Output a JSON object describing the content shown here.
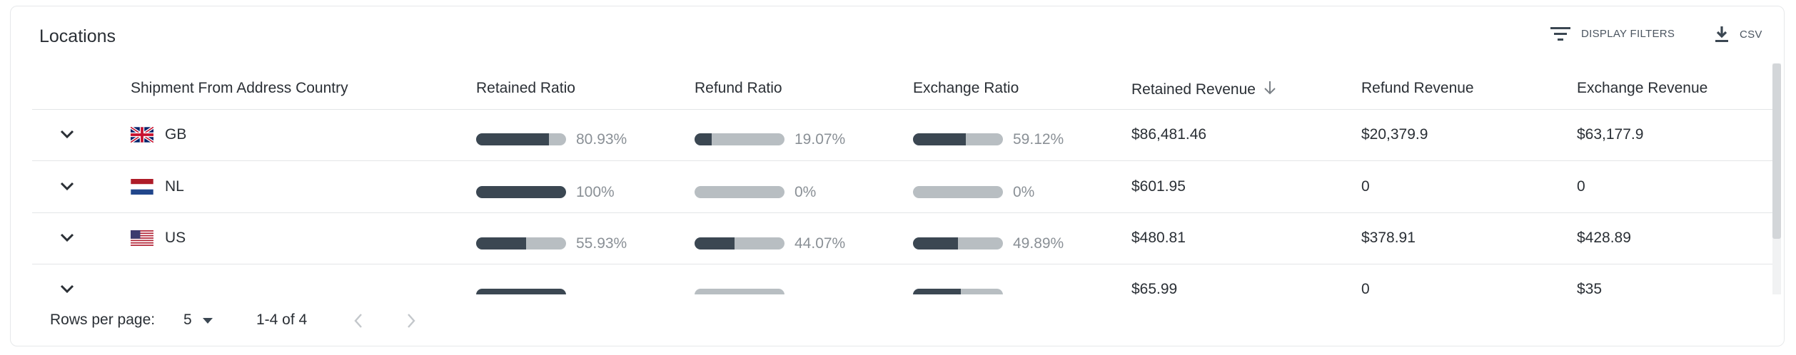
{
  "panel": {
    "title": "Locations",
    "display_filters_label": "DISPLAY FILTERS",
    "csv_label": "CSV",
    "filter_icon": "filter-list-icon",
    "download_icon": "download-icon"
  },
  "table": {
    "columns": {
      "country": "Shipment From Address Country",
      "retained_ratio": "Retained Ratio",
      "refund_ratio": "Refund Ratio",
      "exchange_ratio": "Exchange Ratio",
      "retained_revenue": "Retained Revenue",
      "refund_revenue": "Refund Revenue",
      "exchange_revenue": "Exchange Revenue"
    },
    "sorted_column": "retained_revenue",
    "sort_direction": "descending",
    "rows": [
      {
        "country": "GB",
        "flag": "uk-flag-icon",
        "retained_ratio": {
          "value": 0.8093,
          "label": "80.93%"
        },
        "refund_ratio": {
          "value": 0.1907,
          "label": "19.07%"
        },
        "exchange_ratio": {
          "value": 0.5912,
          "label": "59.12%"
        },
        "retained_revenue": "$86,481.46",
        "refund_revenue": "$20,379.9",
        "exchange_revenue": "$63,177.9"
      },
      {
        "country": "NL",
        "flag": "nl-flag-icon",
        "retained_ratio": {
          "value": 1.0,
          "label": "100%"
        },
        "refund_ratio": {
          "value": 0.0,
          "label": "0%"
        },
        "exchange_ratio": {
          "value": 0.0,
          "label": "0%"
        },
        "retained_revenue": "$601.95",
        "refund_revenue": "0",
        "exchange_revenue": "0"
      },
      {
        "country": "US",
        "flag": "us-flag-icon",
        "retained_ratio": {
          "value": 0.5593,
          "label": "55.93%"
        },
        "refund_ratio": {
          "value": 0.4407,
          "label": "44.07%"
        },
        "exchange_ratio": {
          "value": 0.4989,
          "label": "49.89%"
        },
        "retained_revenue": "$480.81",
        "refund_revenue": "$378.91",
        "exchange_revenue": "$428.89"
      },
      {
        "country": "",
        "flag": "",
        "retained_ratio": {
          "value": 1.0,
          "label": ""
        },
        "refund_ratio": {
          "value": 0.0,
          "label": ""
        },
        "exchange_ratio": {
          "value": 0.53,
          "label": ""
        },
        "retained_revenue": "$65.99",
        "refund_revenue": "0",
        "exchange_revenue": "$35"
      }
    ]
  },
  "pagination": {
    "rows_per_page_label": "Rows per page:",
    "rows_per_page_value": "5",
    "range_label": "1-4 of 4"
  },
  "colors": {
    "bar_fill": "#3b4752",
    "bar_track": "#b8bec2"
  }
}
